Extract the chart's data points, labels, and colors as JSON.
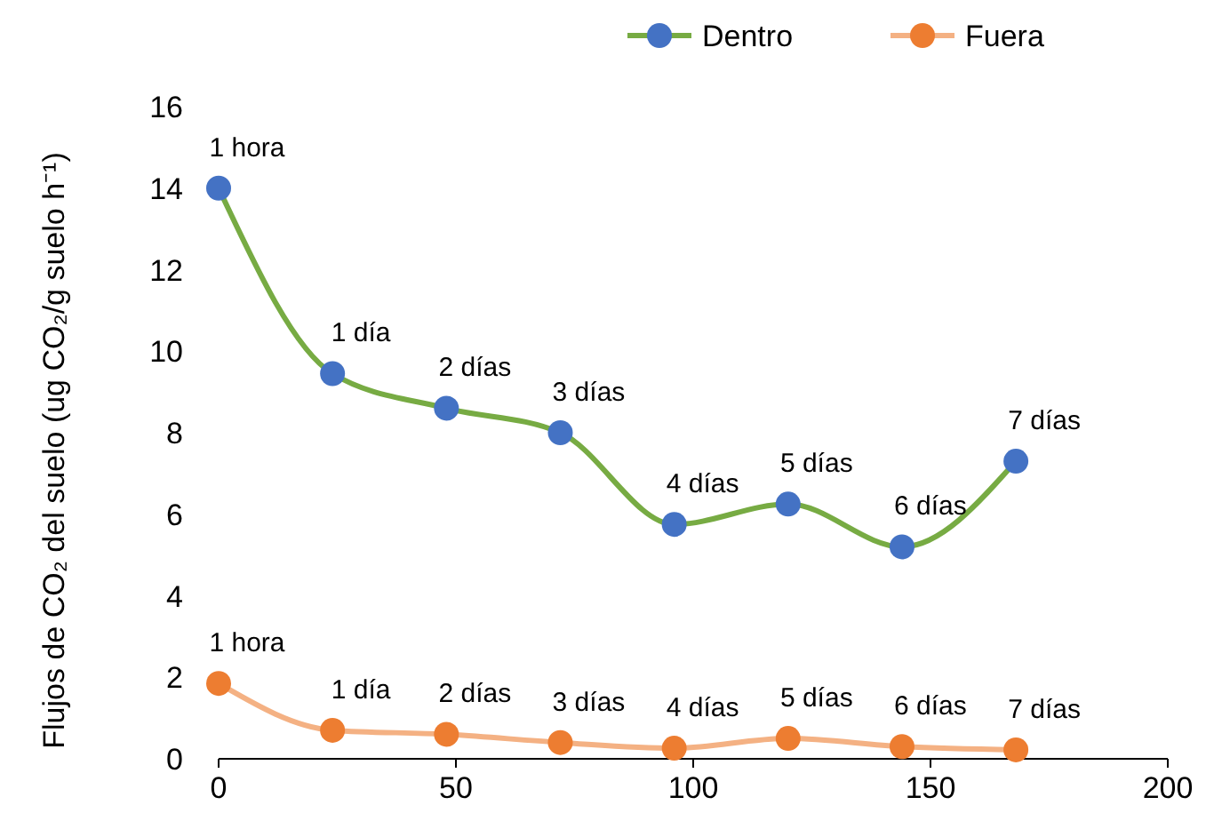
{
  "chart_data": {
    "type": "line",
    "ylabel": "Flujos de CO₂ del suelo (ug CO₂/g suelo h⁻¹)",
    "x": [
      0,
      24,
      48,
      72,
      96,
      120,
      144,
      168
    ],
    "series": [
      {
        "name": "Dentro",
        "color": "#77ab43",
        "colors": [
          "#4472c4",
          "#4472c4",
          "#4472c4",
          "#4472c4",
          "#4472c4",
          "#4472c4",
          "#4472c4",
          "#4472c4"
        ],
        "values": [
          14,
          9.45,
          8.6,
          8,
          5.75,
          6.25,
          5.2,
          7.3
        ]
      },
      {
        "name": "Fuera",
        "color": "#f4b183",
        "colors": [
          "#ed7d31",
          "#ed7d31",
          "#ed7d31",
          "#ed7d31",
          "#ed7d31",
          "#ed7d31",
          "#ed7d31",
          "#ed7d31"
        ],
        "values": [
          1.85,
          0.7,
          0.6,
          0.4,
          0.26,
          0.5,
          0.3,
          0.22
        ]
      }
    ],
    "annotations": [
      {
        "text": "1 hora",
        "x": 0,
        "y": 14
      },
      {
        "text": "1 día",
        "x": 24,
        "y": 9.45
      },
      {
        "text": "2 días",
        "x": 48,
        "y": 8.6
      },
      {
        "text": "3 días",
        "x": 72,
        "y": 8
      },
      {
        "text": "4 días",
        "x": 96,
        "y": 5.75
      },
      {
        "text": "5 días",
        "x": 120,
        "y": 6.25
      },
      {
        "text": "6 días",
        "x": 144,
        "y": 5.2
      },
      {
        "text": "7 días",
        "x": 168,
        "y": 7.3
      },
      {
        "text": "1 hora",
        "x": 0,
        "y": 1.85
      },
      {
        "text": "1 día",
        "x": 24,
        "y": 0.7
      },
      {
        "text": "2 días",
        "x": 48,
        "y": 0.6
      },
      {
        "text": "3 días",
        "x": 72,
        "y": 0.4
      },
      {
        "text": "4 días",
        "x": 96,
        "y": 0.26
      },
      {
        "text": "5 días",
        "x": 120,
        "y": 0.5
      },
      {
        "text": "6 días",
        "x": 144,
        "y": 0.3
      },
      {
        "text": "7 días",
        "x": 168,
        "y": 0.22
      }
    ],
    "xlim": [
      0,
      200
    ],
    "xticks": [
      0,
      50,
      100,
      150,
      200
    ],
    "ylim": [
      0,
      16
    ],
    "yticks": [
      0,
      2,
      4,
      6,
      8,
      10,
      12,
      14,
      16
    ],
    "grid": false,
    "legend": "top right",
    "marker": "circle",
    "line_style": "solid"
  }
}
